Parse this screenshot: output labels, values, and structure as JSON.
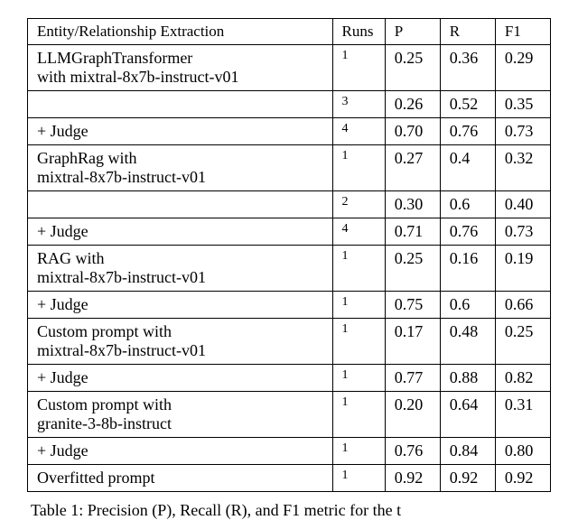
{
  "table": {
    "headers": {
      "method": "Entity/Relationship Extraction",
      "runs": "Runs",
      "p": "P",
      "r": "R",
      "f1": "F1"
    },
    "rows": [
      {
        "method": "LLMGraphTransformer\nwith mixtral-8x7b-instruct-v01",
        "runs": "1",
        "p": "0.25",
        "r": "0.36",
        "f1": "0.29"
      },
      {
        "method": "",
        "runs": "3",
        "p": "0.26",
        "r": "0.52",
        "f1": "0.35"
      },
      {
        "method": "+ Judge",
        "runs": "4",
        "p": "0.70",
        "r": "0.76",
        "f1": "0.73"
      },
      {
        "method": "GraphRag with\nmixtral-8x7b-instruct-v01",
        "runs": "1",
        "p": "0.27",
        "r": "0.4",
        "f1": "0.32"
      },
      {
        "method": "",
        "runs": "2",
        "p": "0.30",
        "r": "0.6",
        "f1": "0.40"
      },
      {
        "method": "+ Judge",
        "runs": "4",
        "p": "0.71",
        "r": "0.76",
        "f1": "0.73"
      },
      {
        "method": "RAG with\nmixtral-8x7b-instruct-v01",
        "runs": "1",
        "p": "0.25",
        "r": "0.16",
        "f1": "0.19"
      },
      {
        "method": "+ Judge",
        "runs": "1",
        "p": "0.75",
        "r": "0.6",
        "f1": "0.66"
      },
      {
        "method": "Custom prompt with\nmixtral-8x7b-instruct-v01",
        "runs": "1",
        "p": "0.17",
        "r": "0.48",
        "f1": "0.25"
      },
      {
        "method": "+ Judge",
        "runs": "1",
        "p": "0.77",
        "r": "0.88",
        "f1": "0.82"
      },
      {
        "method": "Custom prompt with\ngranite-3-8b-instruct",
        "runs": "1",
        "p": "0.20",
        "r": "0.64",
        "f1": "0.31"
      },
      {
        "method": "+ Judge",
        "runs": "1",
        "p": "0.76",
        "r": "0.84",
        "f1": "0.80"
      },
      {
        "method": "Overfitted prompt",
        "runs": "1",
        "p": "0.92",
        "r": "0.92",
        "f1": "0.92"
      }
    ]
  },
  "caption": "Table 1: Precision (P), Recall (R), and F1 metric for the t",
  "styles": {
    "font_family": "Times New Roman",
    "header_fontsize": 17,
    "cell_fontsize": 18,
    "runs_fontsize": 14,
    "caption_fontsize": 18,
    "border_color": "#000000",
    "background_color": "#ffffff",
    "col_widths": {
      "method": "58%",
      "runs": "10%",
      "metric": "10.5%"
    }
  }
}
